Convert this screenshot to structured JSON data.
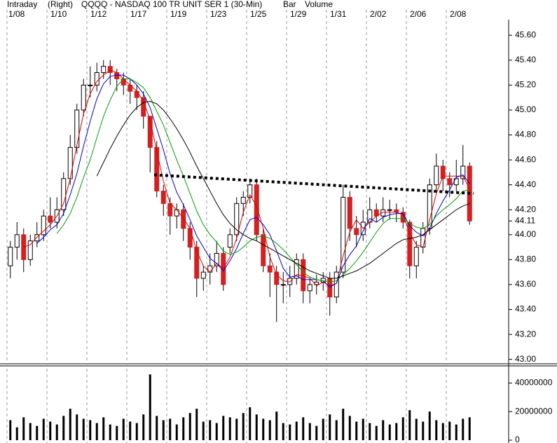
{
  "chart_data": {
    "type": "candlestick",
    "period": "Intraday",
    "scale": "(Right)",
    "title": "QQQQ - NASDAQ 100 TR UNIT SER 1  (30-Min)",
    "style": "Bar",
    "overlay": "Volume",
    "up_color": "#ffffff",
    "down_color": "#d42020",
    "categories": [
      "1/08",
      null,
      null,
      null,
      null,
      null,
      "1/10",
      null,
      null,
      null,
      null,
      null,
      "1/12",
      null,
      null,
      null,
      null,
      null,
      "1/17",
      null,
      null,
      null,
      null,
      null,
      "1/19",
      null,
      null,
      null,
      null,
      null,
      "1/23",
      null,
      null,
      null,
      null,
      null,
      "1/25",
      null,
      null,
      null,
      null,
      null,
      "1/29",
      null,
      null,
      null,
      null,
      null,
      "1/31",
      null,
      null,
      null,
      null,
      null,
      "2/02",
      null,
      null,
      null,
      null,
      null,
      "2/06",
      null,
      null,
      null,
      null,
      null,
      "2/08",
      null,
      null,
      null
    ],
    "ohlc": [
      [
        43.75,
        43.95,
        43.65,
        43.9
      ],
      [
        43.9,
        44.1,
        43.8,
        44.0
      ],
      [
        44.0,
        44.05,
        43.7,
        43.8
      ],
      [
        43.8,
        44.0,
        43.75,
        43.95
      ],
      [
        43.95,
        44.1,
        43.9,
        44.0
      ],
      [
        44.0,
        44.2,
        43.95,
        44.15
      ],
      [
        44.15,
        44.3,
        44.05,
        44.1
      ],
      [
        44.1,
        44.3,
        44.05,
        44.2
      ],
      [
        44.2,
        44.5,
        44.15,
        44.45
      ],
      [
        44.45,
        44.8,
        44.4,
        44.7
      ],
      [
        44.7,
        45.05,
        44.65,
        45.0
      ],
      [
        45.0,
        45.25,
        44.95,
        45.2
      ],
      [
        45.2,
        45.35,
        45.1,
        45.2
      ],
      [
        45.2,
        45.38,
        45.15,
        45.3
      ],
      [
        45.3,
        45.4,
        45.25,
        45.35
      ],
      [
        45.35,
        45.4,
        45.2,
        45.3
      ],
      [
        45.3,
        45.33,
        45.15,
        45.25
      ],
      [
        45.25,
        45.3,
        45.12,
        45.2
      ],
      [
        45.2,
        45.25,
        45.05,
        45.15
      ],
      [
        45.15,
        45.2,
        45.0,
        45.1
      ],
      [
        45.1,
        45.15,
        44.85,
        44.95
      ],
      [
        44.95,
        44.95,
        44.5,
        44.7
      ],
      [
        44.7,
        44.75,
        44.3,
        44.35
      ],
      [
        44.35,
        44.4,
        44.15,
        44.25
      ],
      [
        44.25,
        44.3,
        44.0,
        44.15
      ],
      [
        44.15,
        44.25,
        44.05,
        44.2
      ],
      [
        44.2,
        44.25,
        43.95,
        44.05
      ],
      [
        44.05,
        44.1,
        43.8,
        43.9
      ],
      [
        43.9,
        43.95,
        43.5,
        43.65
      ],
      [
        43.65,
        43.75,
        43.55,
        43.7
      ],
      [
        43.7,
        43.85,
        43.6,
        43.75
      ],
      [
        43.75,
        43.95,
        43.7,
        43.85
      ],
      [
        43.85,
        43.9,
        43.55,
        43.6
      ],
      [
        43.9,
        44.05,
        43.85,
        44.0
      ],
      [
        44.0,
        44.3,
        43.95,
        44.25
      ],
      [
        44.25,
        44.35,
        44.15,
        44.3
      ],
      [
        44.3,
        44.45,
        44.25,
        44.4
      ],
      [
        44.4,
        44.45,
        43.95,
        44.0
      ],
      [
        44.0,
        44.05,
        43.7,
        43.75
      ],
      [
        43.75,
        43.85,
        43.5,
        43.7
      ],
      [
        43.7,
        43.75,
        43.3,
        43.6
      ],
      [
        43.6,
        43.7,
        43.45,
        43.6
      ],
      [
        43.6,
        43.75,
        43.5,
        43.65
      ],
      [
        43.65,
        43.85,
        43.6,
        43.8
      ],
      [
        43.8,
        43.85,
        43.45,
        43.55
      ],
      [
        43.55,
        43.65,
        43.45,
        43.6
      ],
      [
        43.6,
        43.68,
        43.52,
        43.62
      ],
      [
        43.62,
        43.7,
        43.55,
        43.65
      ],
      [
        43.65,
        43.7,
        43.35,
        43.5
      ],
      [
        43.5,
        43.75,
        43.45,
        43.7
      ],
      [
        43.7,
        44.4,
        43.65,
        44.3
      ],
      [
        44.3,
        44.35,
        43.95,
        44.05
      ],
      [
        44.05,
        44.15,
        43.9,
        44.0
      ],
      [
        44.0,
        44.2,
        43.95,
        44.1
      ],
      [
        44.1,
        44.3,
        44.05,
        44.2
      ],
      [
        44.2,
        44.25,
        44.1,
        44.15
      ],
      [
        44.15,
        44.3,
        44.1,
        44.2
      ],
      [
        44.2,
        44.28,
        44.12,
        44.2
      ],
      [
        44.2,
        44.25,
        44.1,
        44.18
      ],
      [
        44.18,
        44.22,
        44.05,
        44.1
      ],
      [
        44.1,
        44.12,
        43.65,
        43.75
      ],
      [
        43.75,
        43.95,
        43.65,
        43.9
      ],
      [
        43.9,
        44.1,
        43.85,
        44.05
      ],
      [
        44.05,
        44.45,
        44.0,
        44.4
      ],
      [
        44.4,
        44.65,
        44.35,
        44.55
      ],
      [
        44.55,
        44.6,
        44.35,
        44.45
      ],
      [
        44.45,
        44.5,
        44.3,
        44.4
      ],
      [
        44.4,
        44.6,
        44.35,
        44.45
      ],
      [
        44.45,
        44.72,
        44.4,
        44.55
      ],
      [
        44.55,
        44.58,
        44.08,
        44.11
      ]
    ],
    "series": [
      {
        "color": "#e00000",
        "values": [
          null,
          null,
          43.9,
          43.92,
          43.98,
          44.03,
          44.08,
          44.15,
          44.25,
          44.45,
          44.72,
          44.97,
          45.13,
          45.23,
          45.28,
          45.32,
          45.3,
          45.25,
          45.2,
          45.15,
          45.07,
          44.92,
          44.67,
          44.43,
          44.25,
          44.2,
          44.13,
          44.05,
          43.87,
          43.75,
          43.7,
          43.77,
          43.73,
          43.82,
          43.97,
          44.18,
          44.32,
          44.23,
          44.05,
          43.82,
          43.68,
          43.63,
          43.62,
          43.68,
          43.67,
          43.65,
          43.59,
          43.62,
          43.59,
          43.61,
          43.83,
          44.02,
          44.12,
          44.05,
          44.1,
          44.15,
          44.18,
          44.18,
          44.18,
          44.16,
          44.01,
          43.92,
          43.9,
          44.12,
          44.33,
          44.47,
          44.47,
          44.47,
          44.47,
          44.37
        ]
      },
      {
        "color": "#0000cc",
        "values": [
          null,
          null,
          null,
          null,
          43.93,
          43.98,
          44.04,
          44.08,
          44.17,
          44.32,
          44.49,
          44.71,
          44.91,
          45.09,
          45.21,
          45.27,
          45.28,
          45.28,
          45.25,
          45.2,
          45.13,
          45.02,
          44.85,
          44.68,
          44.49,
          44.34,
          44.24,
          44.12,
          43.99,
          43.9,
          43.81,
          43.77,
          43.71,
          43.79,
          43.89,
          44.01,
          44.12,
          44.14,
          44.08,
          44.0,
          43.87,
          43.73,
          43.66,
          43.67,
          43.64,
          43.64,
          43.64,
          43.63,
          43.58,
          43.61,
          43.75,
          43.84,
          43.91,
          44.03,
          44.13,
          44.1,
          44.14,
          44.16,
          44.17,
          44.17,
          44.07,
          44.02,
          43.99,
          44.05,
          44.17,
          44.27,
          44.36,
          44.46,
          44.48,
          44.41
        ]
      },
      {
        "color": "#00a000",
        "values": [
          null,
          null,
          null,
          null,
          null,
          null,
          null,
          44.01,
          44.08,
          44.17,
          44.3,
          44.46,
          44.6,
          44.78,
          44.95,
          45.08,
          45.19,
          45.25,
          45.25,
          45.22,
          45.18,
          45.1,
          44.99,
          44.88,
          44.74,
          44.6,
          44.47,
          44.33,
          44.19,
          44.08,
          44.0,
          43.94,
          43.87,
          43.84,
          43.86,
          43.9,
          43.95,
          43.98,
          43.99,
          43.97,
          43.93,
          43.88,
          43.82,
          43.76,
          43.7,
          43.66,
          43.64,
          43.63,
          43.62,
          43.63,
          43.68,
          43.73,
          43.79,
          43.86,
          43.94,
          44.02,
          44.09,
          44.13,
          44.13,
          44.13,
          44.09,
          44.06,
          44.05,
          44.08,
          44.15,
          44.2,
          44.24,
          44.29,
          44.35,
          44.36
        ]
      },
      {
        "color": "#000000",
        "values": [
          null,
          null,
          null,
          null,
          null,
          null,
          null,
          null,
          null,
          null,
          null,
          null,
          null,
          44.47,
          44.58,
          44.69,
          44.79,
          44.88,
          44.96,
          45.02,
          45.06,
          45.07,
          45.05,
          45.0,
          44.93,
          44.85,
          44.76,
          44.66,
          44.55,
          44.45,
          44.35,
          44.25,
          44.16,
          44.09,
          44.04,
          44.0,
          43.97,
          43.95,
          43.92,
          43.89,
          43.86,
          43.83,
          43.8,
          43.77,
          43.74,
          43.71,
          43.69,
          43.67,
          43.65,
          43.65,
          43.67,
          43.69,
          43.71,
          43.74,
          43.77,
          43.81,
          43.85,
          43.89,
          43.93,
          43.96,
          43.97,
          43.98,
          44.0,
          44.04,
          44.08,
          44.12,
          44.16,
          44.2,
          44.23,
          44.25
        ]
      }
    ],
    "trendline": {
      "color": "#000000",
      "x": [
        21.6,
        69.6
      ],
      "values": [
        44.48,
        44.33
      ]
    },
    "ylim": [
      42.97,
      45.77
    ],
    "yticks": [
      {
        "value": 43.0,
        "label": "43.00"
      },
      {
        "value": 43.2,
        "label": "43.20"
      },
      {
        "value": 43.4,
        "label": "43.40"
      },
      {
        "value": 43.6,
        "label": "43.60"
      },
      {
        "value": 43.8,
        "label": "43.80"
      },
      {
        "value": 44.0,
        "label": "44.00"
      },
      44.11,
      {
        "value": 44.2,
        "label": "44.20"
      },
      {
        "value": 44.4,
        "label": "44.40"
      },
      {
        "value": 44.6,
        "label": "44.60"
      },
      {
        "value": 44.8,
        "label": "44.80"
      },
      {
        "value": 45.0,
        "label": "45.00"
      },
      {
        "value": 45.2,
        "label": "45.20"
      },
      {
        "value": 45.4,
        "label": "45.40"
      },
      {
        "value": 45.6,
        "label": "45.60"
      }
    ],
    "volume": {
      "color": "#000000",
      "ylim": [
        0,
        50000000
      ],
      "yticks": [
        0,
        20000000,
        40000000
      ],
      "values": [
        14000000,
        9000000,
        16000000,
        12000000,
        10000000,
        15000000,
        13000000,
        11000000,
        17000000,
        22000000,
        18000000,
        15000000,
        14000000,
        12000000,
        16000000,
        11000000,
        10000000,
        15000000,
        13000000,
        12000000,
        18000000,
        46000000,
        17000000,
        14000000,
        15000000,
        11000000,
        16000000,
        19000000,
        22000000,
        13000000,
        14000000,
        12000000,
        17000000,
        16000000,
        15000000,
        19000000,
        23000000,
        18000000,
        15000000,
        14000000,
        20000000,
        12000000,
        11000000,
        13000000,
        16000000,
        12000000,
        10000000,
        15000000,
        18000000,
        14000000,
        22000000,
        17000000,
        13000000,
        15000000,
        12000000,
        10000000,
        14000000,
        11000000,
        12000000,
        16000000,
        21000000,
        15000000,
        13000000,
        20000000,
        14000000,
        12000000,
        13000000,
        11000000,
        15000000,
        16000000
      ]
    }
  }
}
